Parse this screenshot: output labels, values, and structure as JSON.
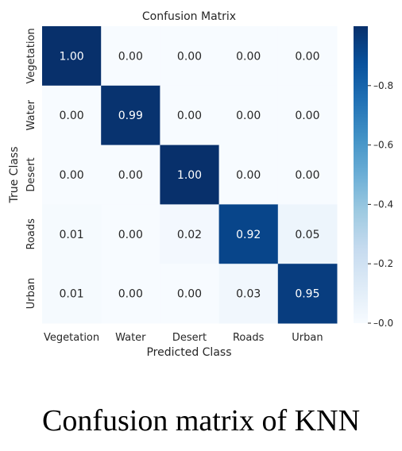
{
  "chart_data": {
    "type": "heatmap",
    "title": "Confusion Matrix",
    "xlabel": "Predicted Class",
    "ylabel": "True Class",
    "x_categories": [
      "Vegetation",
      "Water",
      "Desert",
      "Roads",
      "Urban"
    ],
    "y_categories": [
      "Vegetation",
      "Water",
      "Desert",
      "Roads",
      "Urban"
    ],
    "values": [
      [
        1.0,
        0.0,
        0.0,
        0.0,
        0.0
      ],
      [
        0.0,
        0.99,
        0.0,
        0.0,
        0.0
      ],
      [
        0.0,
        0.0,
        1.0,
        0.0,
        0.0
      ],
      [
        0.01,
        0.0,
        0.02,
        0.92,
        0.05
      ],
      [
        0.01,
        0.0,
        0.0,
        0.03,
        0.95
      ]
    ],
    "colorbar": {
      "min": 0.0,
      "max": 1.0,
      "ticks": [
        "0.0",
        "0.2",
        "0.4",
        "0.6",
        "0.8"
      ]
    },
    "colormap": {
      "low": "#f7fbff",
      "high": "#08306b"
    }
  },
  "caption": "Confusion matrix of KNN"
}
